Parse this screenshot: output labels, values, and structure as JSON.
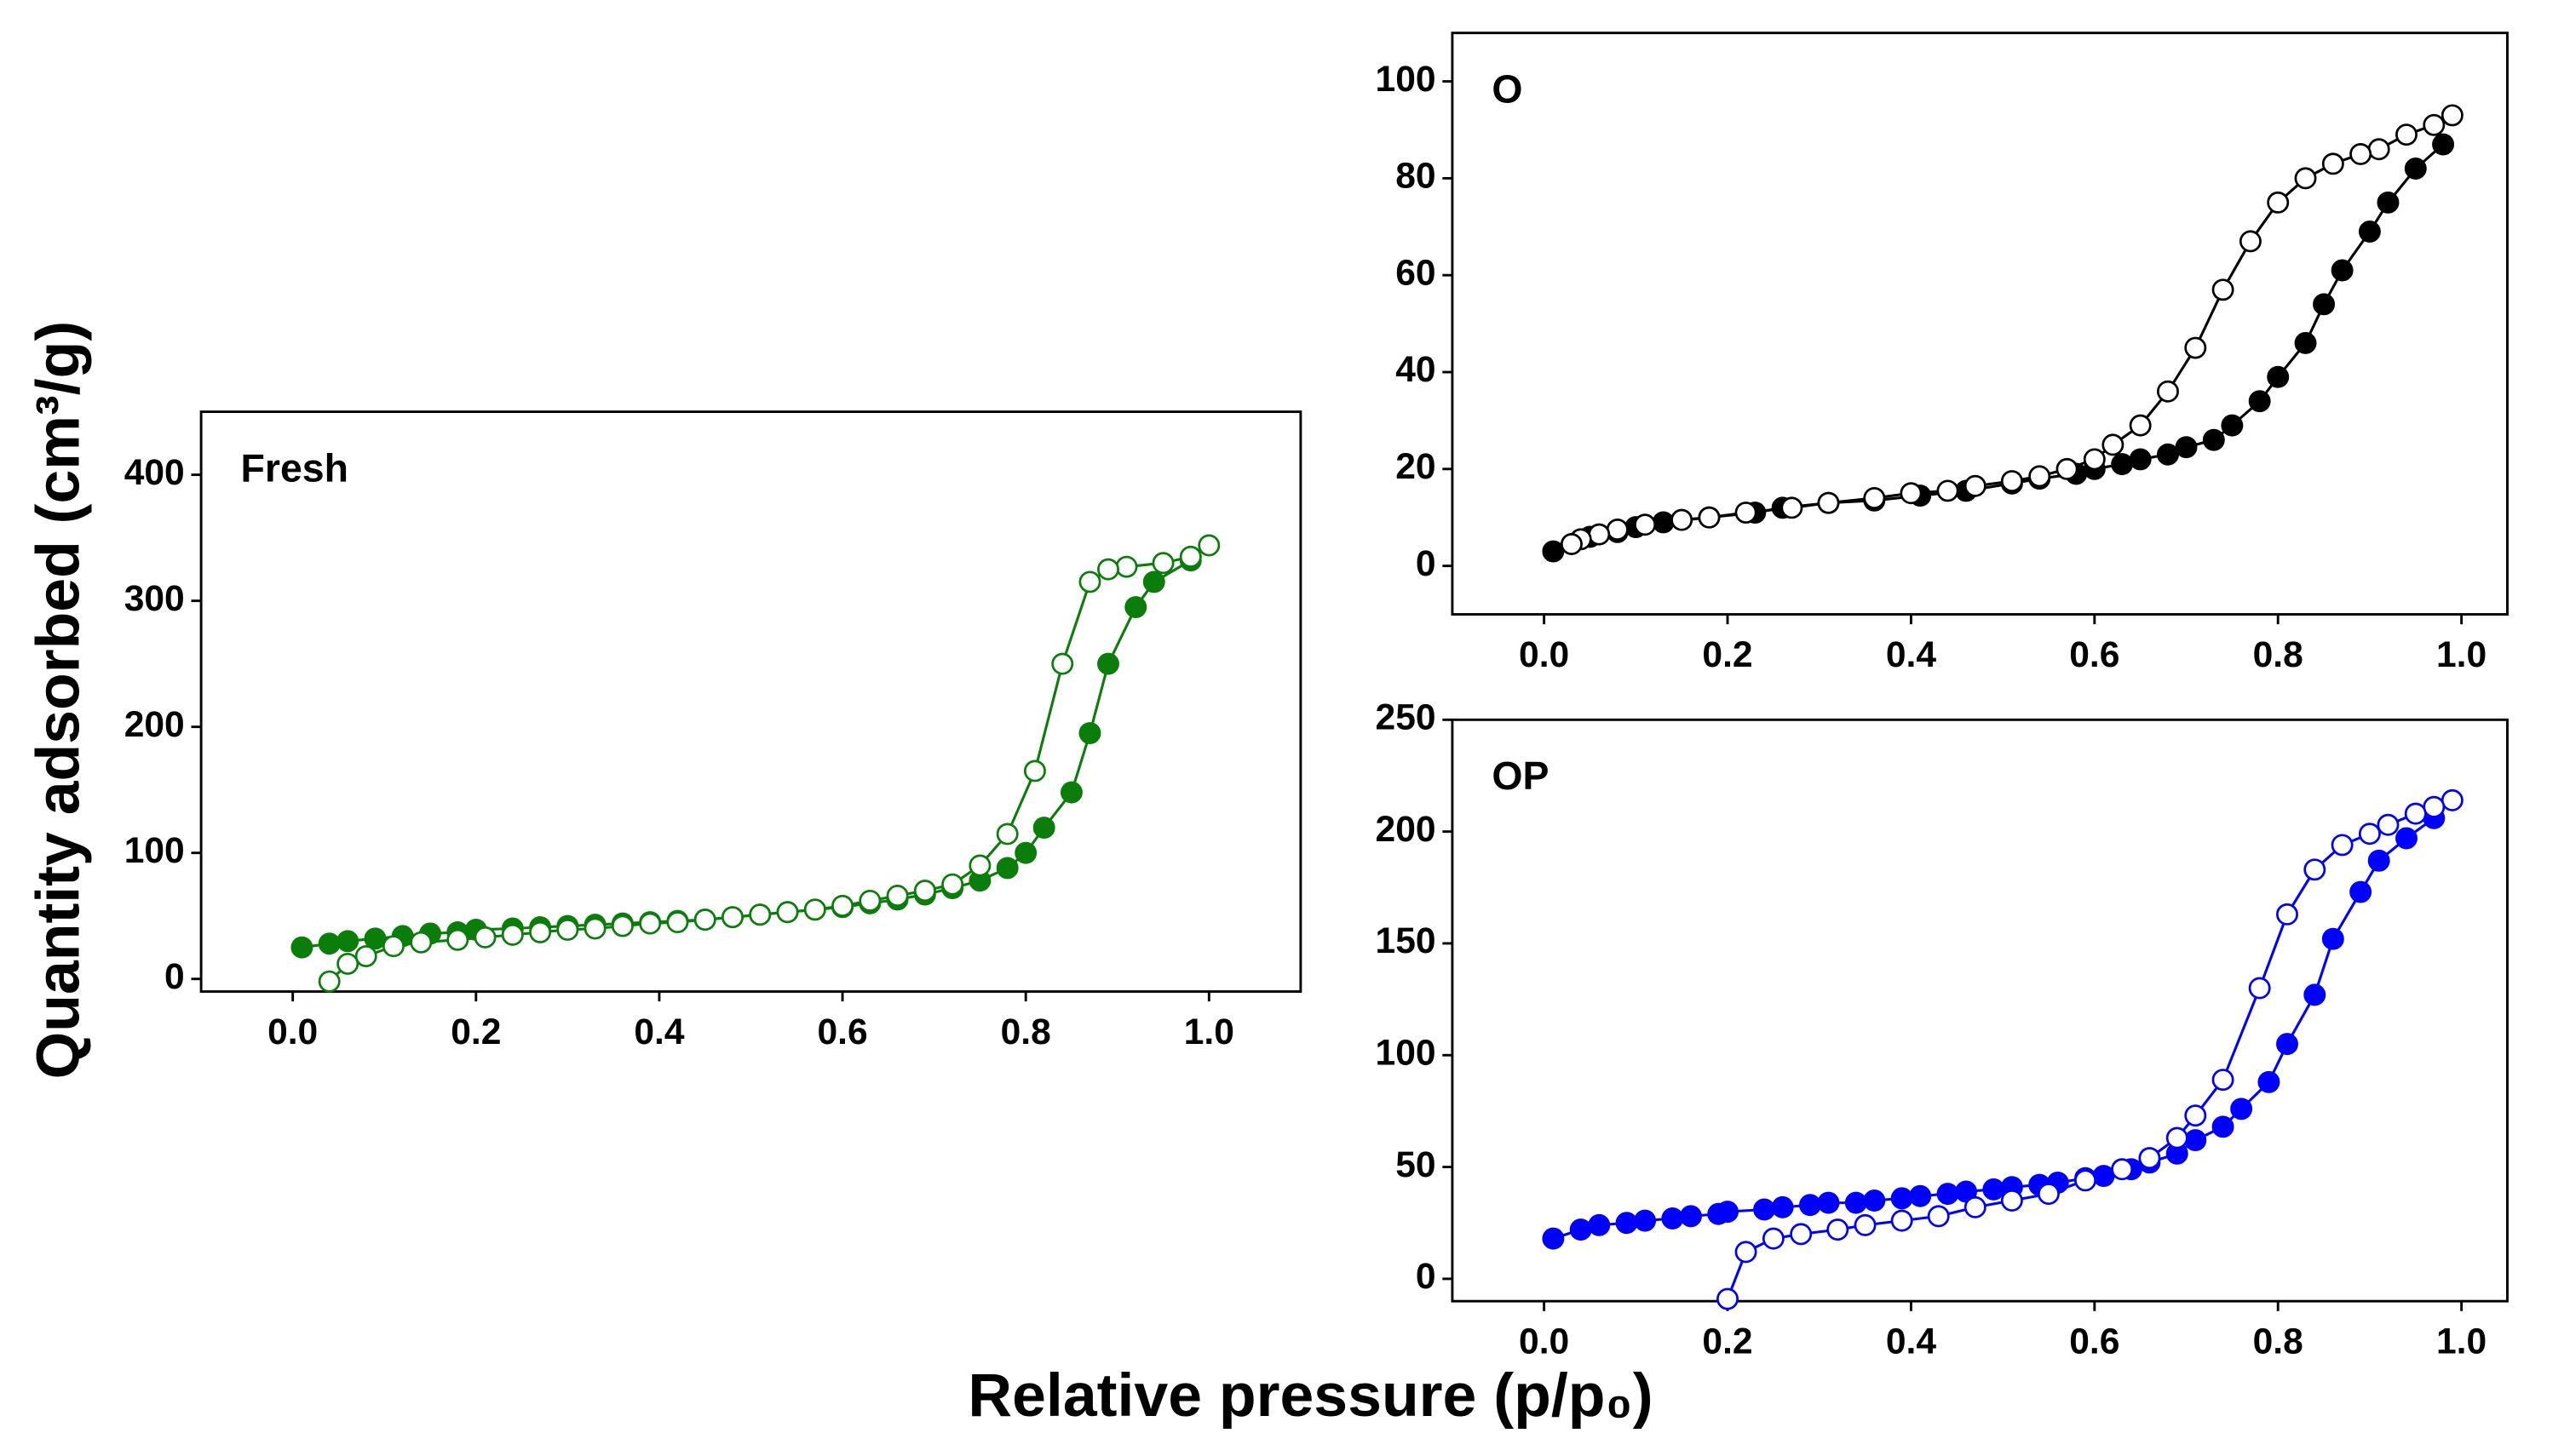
{
  "ylabel": "Quantity adsorbed (cm³/g)",
  "xlabel": "Relative pressure (p/p₀)",
  "chart_data": [
    {
      "type": "line",
      "label": "Fresh",
      "xlim": [
        -0.1,
        1.1
      ],
      "ylim": [
        -10,
        450
      ],
      "xticks": [
        {
          "value": 0,
          "label": "0.0"
        },
        {
          "value": 0.2,
          "label": "0.2"
        },
        {
          "value": 0.4,
          "label": "0.4"
        },
        {
          "value": 0.6,
          "label": "0.6"
        },
        {
          "value": 0.8,
          "label": "0.8"
        },
        {
          "value": 1,
          "label": "1.0"
        }
      ],
      "yticks": [
        0,
        100,
        200,
        300,
        400
      ],
      "series": [
        {
          "color": "#0a7d0a",
          "marker": "filled",
          "x": [
            0.01,
            0.04,
            0.06,
            0.09,
            0.12,
            0.15,
            0.18,
            0.2,
            0.24,
            0.27,
            0.3,
            0.33,
            0.36,
            0.39,
            0.42,
            0.45,
            0.48,
            0.51,
            0.54,
            0.57,
            0.6,
            0.63,
            0.66,
            0.69,
            0.72,
            0.75,
            0.78,
            0.8,
            0.82,
            0.85,
            0.87,
            0.89,
            0.92,
            0.94,
            0.98
          ],
          "values": [
            25,
            28,
            30,
            32,
            34,
            36,
            37,
            39,
            40,
            41,
            42,
            43,
            44,
            45,
            46,
            47,
            49,
            51,
            53,
            55,
            57,
            60,
            63,
            67,
            72,
            78,
            88,
            100,
            120,
            148,
            195,
            250,
            295,
            315,
            332
          ]
        },
        {
          "color": "#0a7d0a",
          "marker": "open",
          "x": [
            1.0,
            0.98,
            0.95,
            0.91,
            0.89,
            0.87,
            0.84,
            0.81,
            0.78,
            0.75,
            0.72,
            0.69,
            0.66,
            0.63,
            0.6,
            0.57,
            0.54,
            0.51,
            0.48,
            0.45,
            0.42,
            0.39,
            0.36,
            0.33,
            0.3,
            0.27,
            0.24,
            0.21,
            0.18,
            0.14,
            0.11,
            0.08,
            0.06,
            0.04
          ],
          "values": [
            344,
            335,
            330,
            327,
            325,
            315,
            250,
            165,
            115,
            90,
            75,
            70,
            66,
            62,
            58,
            55,
            53,
            51,
            49,
            47,
            45,
            44,
            42,
            40,
            39,
            37,
            35,
            33,
            31,
            29,
            26,
            18,
            12,
            -2
          ]
        }
      ]
    },
    {
      "type": "line",
      "label": "O",
      "xlim": [
        -0.1,
        1.05
      ],
      "ylim": [
        -10,
        110
      ],
      "xticks": [
        {
          "value": 0,
          "label": "0.0"
        },
        {
          "value": 0.2,
          "label": "0.2"
        },
        {
          "value": 0.4,
          "label": "0.4"
        },
        {
          "value": 0.6,
          "label": "0.6"
        },
        {
          "value": 0.8,
          "label": "0.8"
        },
        {
          "value": 1,
          "label": "1.0"
        }
      ],
      "yticks": [
        0,
        20,
        40,
        60,
        80,
        100
      ],
      "series": [
        {
          "color": "#000000",
          "marker": "filled",
          "x": [
            0.01,
            0.05,
            0.08,
            0.1,
            0.13,
            0.18,
            0.23,
            0.26,
            0.31,
            0.36,
            0.41,
            0.46,
            0.51,
            0.54,
            0.58,
            0.6,
            0.63,
            0.65,
            0.68,
            0.7,
            0.73,
            0.75,
            0.78,
            0.8,
            0.83,
            0.85,
            0.87,
            0.9,
            0.92,
            0.95,
            0.98
          ],
          "values": [
            3,
            6,
            7,
            8,
            9,
            10,
            11,
            12,
            13,
            13.5,
            14.5,
            15.5,
            17,
            18,
            19,
            20,
            21,
            22,
            23,
            24.5,
            26,
            29,
            34,
            39,
            46,
            54,
            61,
            69,
            75,
            82,
            87
          ]
        },
        {
          "color": "#000000",
          "marker": "open",
          "x": [
            0.99,
            0.97,
            0.94,
            0.91,
            0.89,
            0.86,
            0.83,
            0.8,
            0.77,
            0.74,
            0.71,
            0.68,
            0.65,
            0.62,
            0.6,
            0.57,
            0.54,
            0.51,
            0.47,
            0.44,
            0.4,
            0.36,
            0.31,
            0.27,
            0.22,
            0.18,
            0.15,
            0.11,
            0.08,
            0.06,
            0.04,
            0.03
          ],
          "values": [
            93,
            91,
            89,
            86,
            85,
            83,
            80,
            75,
            67,
            57,
            45,
            36,
            29,
            25,
            22,
            20,
            18.5,
            17.5,
            16.5,
            15.5,
            15,
            14,
            13,
            12,
            11,
            10,
            9.5,
            8.5,
            7.5,
            6.5,
            5.5,
            4.5
          ]
        }
      ]
    },
    {
      "type": "line",
      "label": "OP",
      "xlim": [
        -0.1,
        1.05
      ],
      "ylim": [
        -10,
        250
      ],
      "xticks": [
        {
          "value": 0,
          "label": "0.0"
        },
        {
          "value": 0.2,
          "label": "0.2"
        },
        {
          "value": 0.4,
          "label": "0.4"
        },
        {
          "value": 0.6,
          "label": "0.6"
        },
        {
          "value": 0.8,
          "label": "0.8"
        },
        {
          "value": 1,
          "label": "1.0"
        }
      ],
      "yticks": [
        0,
        50,
        100,
        150,
        200,
        250
      ],
      "series": [
        {
          "color": "#0000ff",
          "marker": "filled",
          "x": [
            0.01,
            0.04,
            0.06,
            0.09,
            0.11,
            0.14,
            0.16,
            0.19,
            0.2,
            0.24,
            0.26,
            0.29,
            0.31,
            0.34,
            0.36,
            0.39,
            0.41,
            0.44,
            0.46,
            0.49,
            0.51,
            0.54,
            0.56,
            0.59,
            0.61,
            0.64,
            0.66,
            0.69,
            0.71,
            0.74,
            0.76,
            0.79,
            0.81,
            0.84,
            0.86,
            0.89,
            0.91,
            0.94,
            0.97
          ],
          "values": [
            18,
            22,
            24,
            25,
            26,
            27,
            28,
            29,
            30,
            31,
            32,
            33,
            34,
            34,
            35,
            36,
            37,
            38,
            39,
            40,
            41,
            42,
            43,
            45,
            46,
            49,
            52,
            56,
            62,
            68,
            76,
            88,
            105,
            127,
            152,
            173,
            187,
            197,
            206
          ]
        },
        {
          "color": "#0000ff",
          "marker": "open",
          "x": [
            0.99,
            0.97,
            0.95,
            0.92,
            0.9,
            0.87,
            0.84,
            0.81,
            0.78,
            0.74,
            0.71,
            0.69,
            0.66,
            0.63,
            0.59,
            0.55,
            0.51,
            0.47,
            0.43,
            0.39,
            0.35,
            0.32,
            0.28,
            0.25,
            0.22,
            0.2
          ],
          "values": [
            214,
            211,
            208,
            203,
            199,
            194,
            183,
            163,
            130,
            89,
            73,
            63,
            54,
            49,
            44,
            38,
            35,
            32,
            28,
            26,
            24,
            22,
            20,
            18,
            12,
            -9
          ]
        }
      ]
    }
  ]
}
